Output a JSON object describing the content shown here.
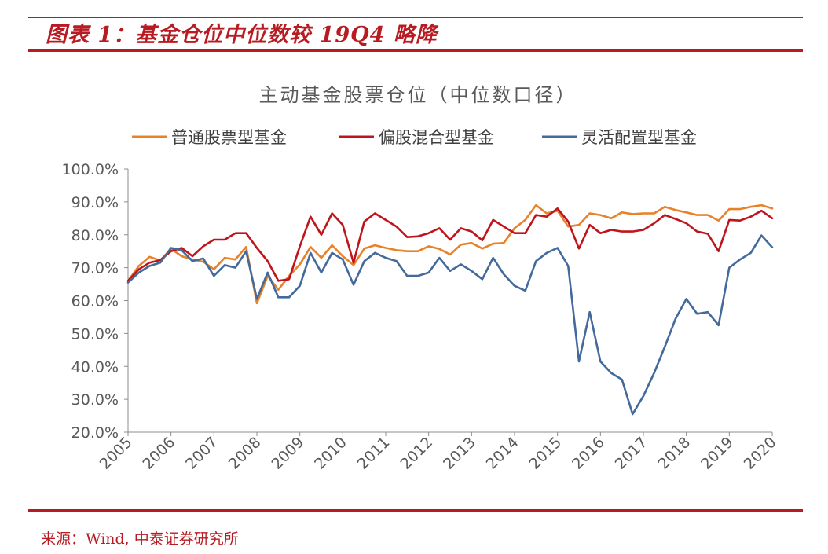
{
  "header": {
    "figure_title": "图表 1：基金仓位中位数较 19Q4 略降"
  },
  "footer": {
    "source": "来源：Wind, 中泰证券研究所"
  },
  "colors": {
    "brand_red": "#b81c22",
    "series_orange": "#e8822a",
    "series_red": "#c0141b",
    "series_blue": "#436a9b"
  },
  "chart_data": {
    "type": "line",
    "title": "主动基金股票仓位（中位数口径）",
    "xlabel": "",
    "ylabel": "",
    "x_tick_labels": [
      "2005",
      "2006",
      "2007",
      "2008",
      "2009",
      "2010",
      "2011",
      "2012",
      "2013",
      "2014",
      "2015",
      "2016",
      "2017",
      "2018",
      "2019",
      "2020"
    ],
    "y_tick_labels": [
      "100.0%",
      "90.0%",
      "80.0%",
      "70.0%",
      "60.0%",
      "50.0%",
      "40.0%",
      "30.0%",
      "20.0%"
    ],
    "ylim": [
      20,
      100
    ],
    "xlim": [
      2005,
      2020
    ],
    "grid": false,
    "legend_position": "top",
    "x_quarters": [
      2005.0,
      2005.25,
      2005.5,
      2005.75,
      2006.0,
      2006.25,
      2006.5,
      2006.75,
      2007.0,
      2007.25,
      2007.5,
      2007.75,
      2008.0,
      2008.25,
      2008.5,
      2008.75,
      2009.0,
      2009.25,
      2009.5,
      2009.75,
      2010.0,
      2010.25,
      2010.5,
      2010.75,
      2011.0,
      2011.25,
      2011.5,
      2011.75,
      2012.0,
      2012.25,
      2012.5,
      2012.75,
      2013.0,
      2013.25,
      2013.5,
      2013.75,
      2014.0,
      2014.25,
      2014.5,
      2014.75,
      2015.0,
      2015.25,
      2015.5,
      2015.75,
      2016.0,
      2016.25,
      2016.5,
      2016.75,
      2017.0,
      2017.25,
      2017.5,
      2017.75,
      2018.0,
      2018.25,
      2018.5,
      2018.75,
      2019.0,
      2019.25,
      2019.5,
      2019.75,
      2020.0
    ],
    "series": [
      {
        "name": "普通股票型基金",
        "color": "#e8822a",
        "values": [
          66.0,
          70.5,
          73.3,
          72.2,
          75.7,
          73.5,
          72.5,
          71.8,
          69.5,
          73.0,
          72.5,
          76.3,
          59.2,
          67.5,
          63.3,
          67.5,
          71.0,
          76.3,
          73.0,
          76.8,
          73.5,
          70.8,
          75.8,
          76.8,
          76.0,
          75.3,
          75.0,
          75.0,
          76.5,
          75.7,
          74.0,
          77.0,
          77.5,
          75.8,
          77.3,
          77.5,
          82.0,
          84.5,
          89.0,
          86.5,
          87.3,
          82.5,
          83.0,
          86.5,
          86.0,
          85.0,
          86.8,
          86.3,
          86.5,
          86.5,
          88.5,
          87.5,
          86.8,
          86.0,
          86.0,
          84.3,
          87.8,
          87.8,
          88.5,
          89.0,
          88.0
        ]
      },
      {
        "name": "偏股混合型基金",
        "color": "#c0141b",
        "values": [
          66.0,
          69.5,
          71.5,
          72.3,
          75.0,
          76.0,
          73.5,
          76.5,
          78.5,
          78.5,
          80.5,
          80.5,
          76.0,
          72.0,
          66.0,
          66.5,
          76.5,
          85.5,
          80.0,
          86.5,
          83.0,
          71.5,
          84.0,
          86.5,
          84.5,
          82.5,
          79.3,
          79.5,
          80.5,
          82.0,
          78.5,
          82.0,
          81.0,
          78.3,
          84.5,
          82.5,
          80.5,
          80.5,
          86.0,
          85.5,
          88.0,
          84.0,
          75.8,
          83.0,
          80.5,
          81.5,
          81.0,
          81.0,
          81.5,
          83.5,
          86.0,
          84.8,
          83.5,
          81.0,
          80.3,
          75.0,
          84.5,
          84.3,
          85.5,
          87.3,
          85.0
        ]
      },
      {
        "name": "灵活配置型基金",
        "color": "#436a9b",
        "values": [
          65.5,
          68.5,
          70.5,
          71.5,
          76.0,
          75.3,
          72.0,
          72.8,
          67.5,
          70.8,
          70.0,
          75.0,
          60.5,
          68.5,
          61.0,
          61.0,
          64.5,
          74.5,
          68.5,
          74.5,
          72.5,
          64.8,
          72.0,
          74.5,
          73.0,
          72.0,
          67.5,
          67.5,
          68.5,
          73.0,
          69.0,
          71.0,
          69.0,
          66.5,
          73.0,
          68.0,
          64.5,
          63.0,
          72.0,
          74.5,
          76.0,
          70.5,
          41.5,
          56.5,
          41.5,
          38.0,
          36.0,
          25.5,
          31.0,
          38.0,
          46.0,
          54.5,
          60.5,
          56.0,
          56.5,
          52.5,
          70.0,
          72.5,
          74.5,
          79.8,
          76.2
        ]
      }
    ]
  }
}
